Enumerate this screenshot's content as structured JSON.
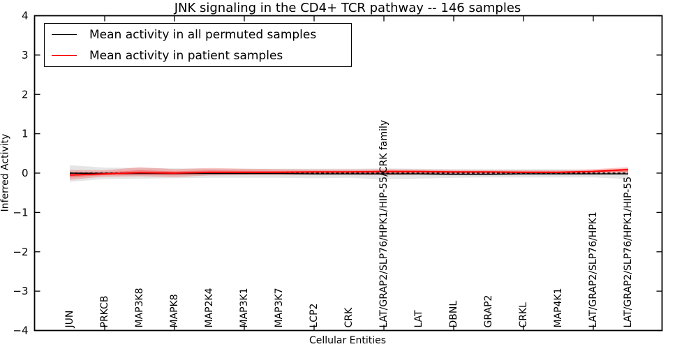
{
  "chart_data": {
    "type": "line",
    "title": "JNK signaling in the CD4+ TCR pathway -- 146 samples",
    "xlabel": "Cellular Entities",
    "ylabel": "Inferred Activity",
    "ylim": [
      -4,
      4
    ],
    "xlim_categories": 17,
    "grid": false,
    "ytick_labels": [
      "4",
      "3",
      "2",
      "1",
      "0",
      "−1",
      "−2",
      "−3",
      "−4"
    ],
    "ytick_values": [
      4,
      3,
      2,
      1,
      0,
      -1,
      -2,
      -3,
      -4
    ],
    "categories": [
      "JUN",
      "PRKCB",
      "MAP3K8",
      "MAPK8",
      "MAP2K4",
      "MAP3K1",
      "MAP3K7",
      "LCP2",
      "CRK",
      "LAT/GRAP2/SLP76/HPK1/HIP-55/CRK family",
      "LAT",
      "DBNL",
      "GRAP2",
      "CRKL",
      "MAP4K1",
      "LAT/GRAP2/SLP76/HPK1",
      "LAT/GRAP2/SLP76/HPK1/HIP-55"
    ],
    "zero_line": {
      "value": 0,
      "style": "dashed",
      "color": "#000000"
    },
    "legend": {
      "position": "upper left"
    },
    "series": [
      {
        "name": "Mean activity in all permuted samples",
        "color": "#000000",
        "values": [
          0.0,
          -0.01,
          -0.01,
          -0.01,
          -0.01,
          -0.01,
          -0.01,
          -0.02,
          -0.02,
          -0.02,
          -0.02,
          -0.03,
          -0.03,
          -0.02,
          -0.02,
          -0.02,
          -0.02
        ]
      },
      {
        "name": "Mean activity in patient samples",
        "color": "#ff0000",
        "values": [
          -0.05,
          -0.02,
          0.01,
          0.0,
          0.02,
          0.02,
          0.02,
          0.03,
          0.03,
          0.04,
          0.04,
          0.03,
          0.03,
          0.02,
          0.02,
          0.04,
          0.09
        ]
      }
    ],
    "bands": [
      {
        "name": "permuted samples std band",
        "color": "rgba(0,0,0,0.10)",
        "lo": [
          -0.22,
          -0.15,
          -0.14,
          -0.13,
          -0.12,
          -0.12,
          -0.12,
          -0.13,
          -0.12,
          -0.16,
          -0.14,
          -0.12,
          -0.11,
          -0.11,
          -0.11,
          -0.11,
          -0.15
        ],
        "hi": [
          0.2,
          0.14,
          0.13,
          0.12,
          0.11,
          0.11,
          0.11,
          0.11,
          0.11,
          0.12,
          0.11,
          0.1,
          0.1,
          0.1,
          0.1,
          0.08,
          0.1
        ]
      },
      {
        "name": "patient samples std band",
        "color": "rgba(255,0,0,0.22)",
        "lo": [
          -0.17,
          -0.09,
          -0.08,
          -0.1,
          -0.06,
          -0.05,
          -0.05,
          -0.04,
          -0.04,
          -0.05,
          -0.04,
          -0.04,
          -0.03,
          -0.03,
          -0.03,
          -0.01,
          -0.03
        ],
        "hi": [
          0.08,
          0.07,
          0.15,
          0.1,
          0.13,
          0.11,
          0.1,
          0.09,
          0.09,
          0.1,
          0.09,
          0.08,
          0.07,
          0.07,
          0.07,
          0.1,
          0.15
        ]
      }
    ]
  }
}
